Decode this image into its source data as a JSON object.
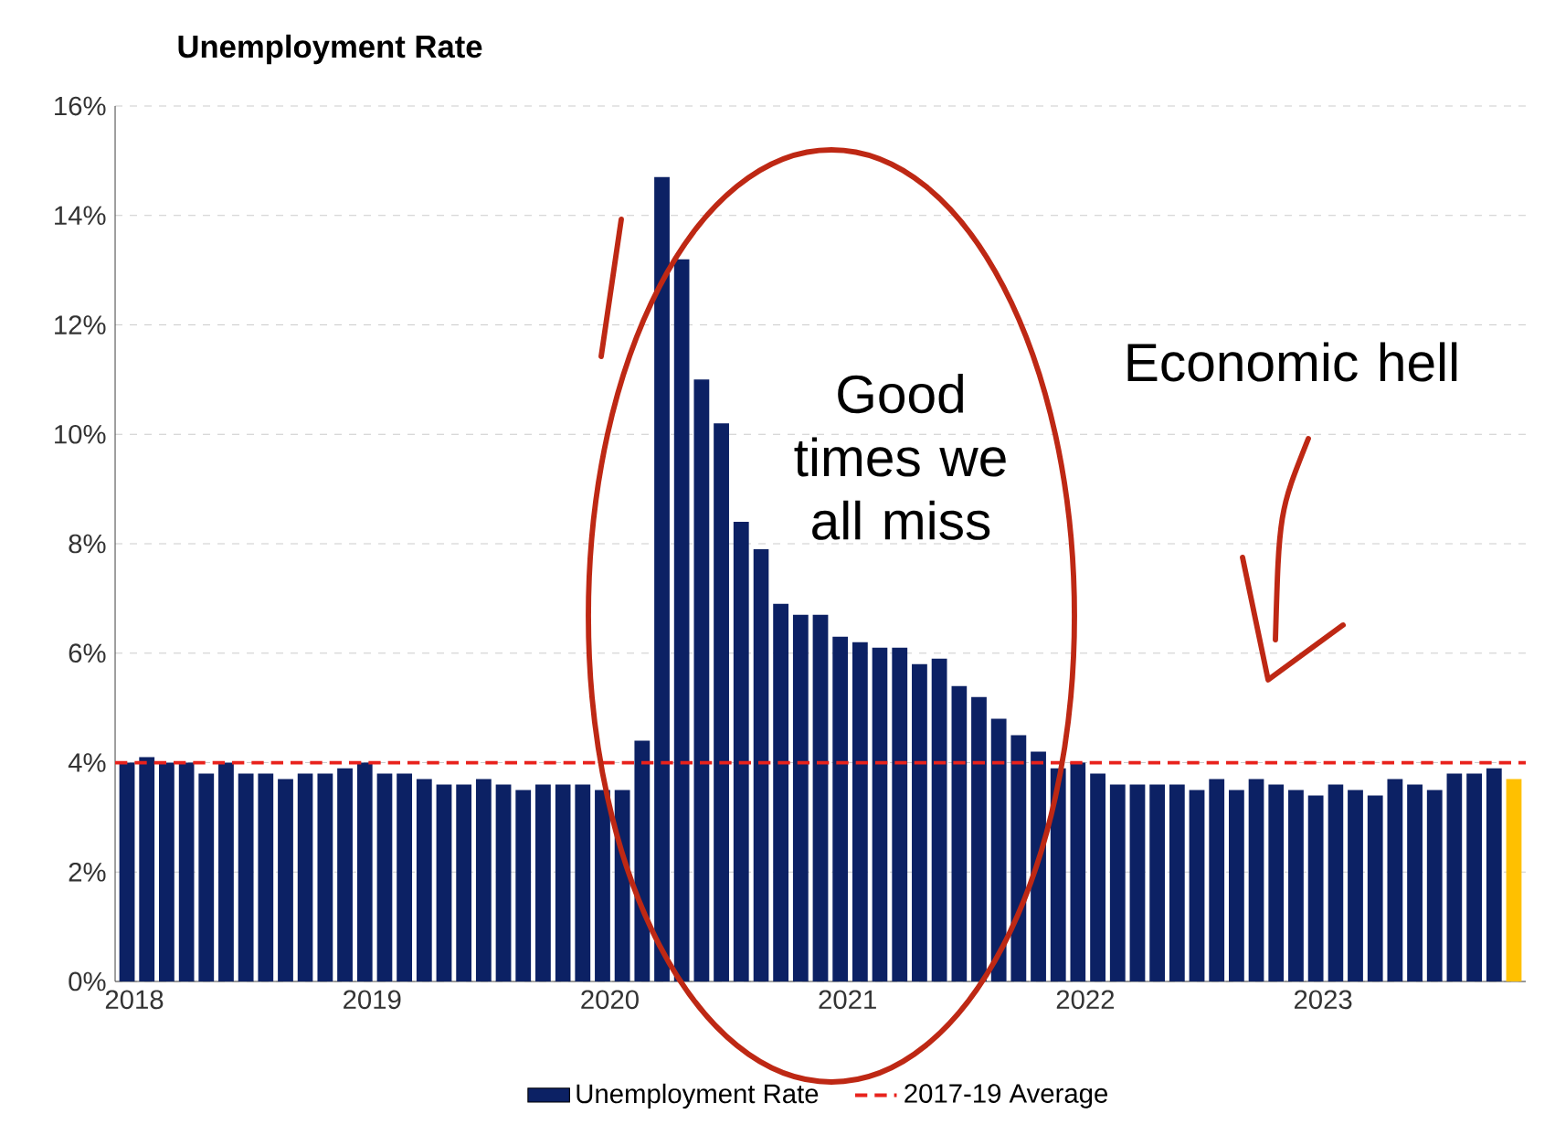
{
  "chart_data": {
    "type": "bar",
    "title": "Unemployment Rate",
    "categories": [
      "2018",
      null,
      null,
      null,
      null,
      null,
      null,
      null,
      null,
      null,
      null,
      null,
      "2019",
      null,
      null,
      null,
      null,
      null,
      null,
      null,
      null,
      null,
      null,
      null,
      "2020",
      null,
      null,
      null,
      null,
      null,
      null,
      null,
      null,
      null,
      null,
      null,
      "2021",
      null,
      null,
      null,
      null,
      null,
      null,
      null,
      null,
      null,
      null,
      null,
      "2022",
      null,
      null,
      null,
      null,
      null,
      null,
      null,
      null,
      null,
      null,
      null,
      "2023",
      null,
      null,
      null,
      null,
      null,
      null,
      null,
      null,
      null,
      null
    ],
    "series": [
      {
        "name": "Unemployment Rate",
        "color": "#0c2164",
        "values": [
          4.0,
          4.1,
          4.0,
          4.0,
          3.8,
          4.0,
          3.8,
          3.8,
          3.7,
          3.8,
          3.8,
          3.9,
          4.0,
          3.8,
          3.8,
          3.7,
          3.6,
          3.6,
          3.7,
          3.6,
          3.5,
          3.6,
          3.6,
          3.6,
          3.5,
          3.5,
          4.4,
          14.7,
          13.2,
          11.0,
          10.2,
          8.4,
          7.9,
          6.9,
          6.7,
          6.7,
          6.3,
          6.2,
          6.1,
          6.1,
          5.8,
          5.9,
          5.4,
          5.2,
          4.8,
          4.5,
          4.2,
          3.9,
          4.0,
          3.8,
          3.6,
          3.6,
          3.6,
          3.6,
          3.5,
          3.7,
          3.5,
          3.7,
          3.6,
          3.5,
          3.4,
          3.6,
          3.5,
          3.4,
          3.7,
          3.6,
          3.5,
          3.8,
          3.8,
          3.9,
          3.7
        ],
        "colors": [
          "#0c2164",
          "#0c2164",
          "#0c2164",
          "#0c2164",
          "#0c2164",
          "#0c2164",
          "#0c2164",
          "#0c2164",
          "#0c2164",
          "#0c2164",
          "#0c2164",
          "#0c2164",
          "#0c2164",
          "#0c2164",
          "#0c2164",
          "#0c2164",
          "#0c2164",
          "#0c2164",
          "#0c2164",
          "#0c2164",
          "#0c2164",
          "#0c2164",
          "#0c2164",
          "#0c2164",
          "#0c2164",
          "#0c2164",
          "#0c2164",
          "#0c2164",
          "#0c2164",
          "#0c2164",
          "#0c2164",
          "#0c2164",
          "#0c2164",
          "#0c2164",
          "#0c2164",
          "#0c2164",
          "#0c2164",
          "#0c2164",
          "#0c2164",
          "#0c2164",
          "#0c2164",
          "#0c2164",
          "#0c2164",
          "#0c2164",
          "#0c2164",
          "#0c2164",
          "#0c2164",
          "#0c2164",
          "#0c2164",
          "#0c2164",
          "#0c2164",
          "#0c2164",
          "#0c2164",
          "#0c2164",
          "#0c2164",
          "#0c2164",
          "#0c2164",
          "#0c2164",
          "#0c2164",
          "#0c2164",
          "#0c2164",
          "#0c2164",
          "#0c2164",
          "#0c2164",
          "#0c2164",
          "#0c2164",
          "#0c2164",
          "#0c2164",
          "#0c2164",
          "#0c2164",
          "#ffc000"
        ]
      }
    ],
    "ylim": [
      0,
      16
    ],
    "yticks": [
      {
        "value": 0,
        "label": "0%"
      },
      {
        "value": 2,
        "label": "2%"
      },
      {
        "value": 4,
        "label": "4%"
      },
      {
        "value": 6,
        "label": "6%"
      },
      {
        "value": 8,
        "label": "8%"
      },
      {
        "value": 10,
        "label": "10%"
      },
      {
        "value": 12,
        "label": "12%"
      },
      {
        "value": 14,
        "label": "14%"
      },
      {
        "value": 16,
        "label": "16%"
      }
    ],
    "ref_lines": [
      {
        "axis": "y",
        "value": 4.0,
        "label": "2017-19 Average",
        "color": "#e8221c",
        "line_style": "dashed"
      }
    ],
    "annotations": [
      "Good times we all miss",
      "Economic hell"
    ],
    "grid": "y",
    "legend": "bottom"
  }
}
